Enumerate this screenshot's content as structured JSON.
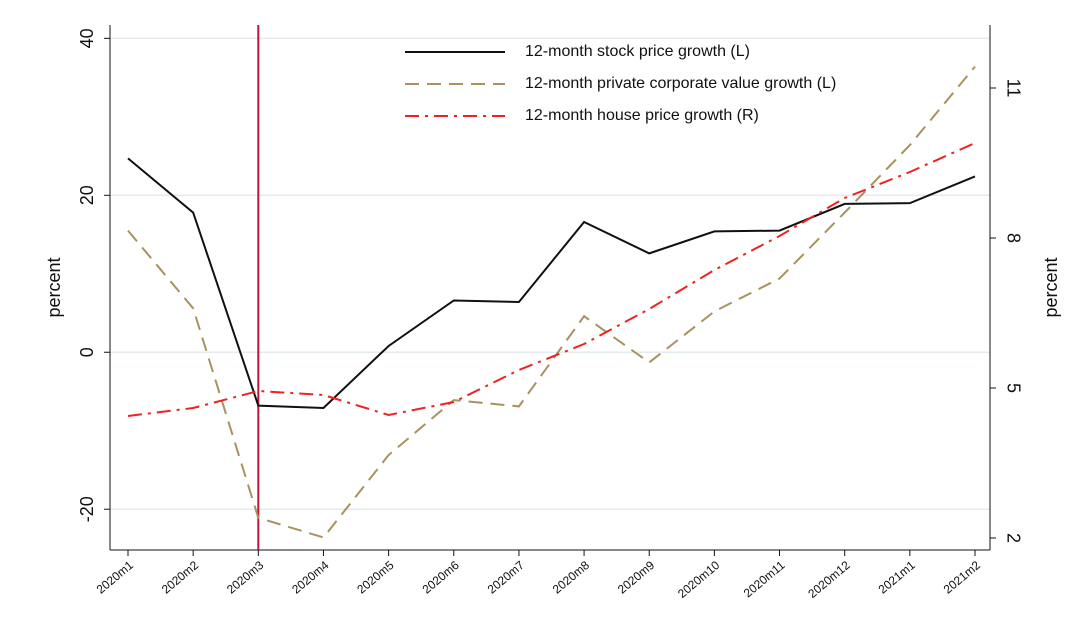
{
  "chart_data": {
    "type": "line",
    "categories": [
      "2020m1",
      "2020m2",
      "2020m3",
      "2020m4",
      "2020m5",
      "2020m6",
      "2020m7",
      "2020m8",
      "2020m9",
      "2020m10",
      "2020m11",
      "2020m12",
      "2021m1",
      "2021m2"
    ],
    "series": [
      {
        "name": "12-month stock price growth (L)",
        "color": "#111111",
        "dash": "solid",
        "axis": "y",
        "values": [
          24.7,
          17.8,
          -6.8,
          -7.1,
          0.8,
          6.6,
          6.4,
          16.6,
          12.6,
          15.4,
          15.5,
          18.9,
          19.0,
          22.4
        ]
      },
      {
        "name": "12-month private corporate value growth (L)",
        "color": "#a8925e",
        "dash": "dashed",
        "axis": "y",
        "values": [
          15.5,
          5.6,
          -21.1,
          -23.6,
          -13.1,
          -6.1,
          -6.9,
          4.6,
          -1.3,
          5.2,
          9.4,
          17.8,
          26.4,
          36.4
        ]
      },
      {
        "name": "12-month house price growth (R)",
        "color": "#ee2222",
        "dash": "dashdot",
        "axis": "y2",
        "values": [
          4.44,
          4.6,
          4.94,
          4.86,
          4.46,
          4.72,
          5.36,
          5.88,
          6.58,
          7.36,
          8.04,
          8.8,
          9.32,
          9.9
        ]
      }
    ],
    "y_label": "percent",
    "y2_label": "percent",
    "ylim": [
      -25.2,
      41.7
    ],
    "yticks": [
      -20,
      0,
      20,
      40
    ],
    "y2lim": [
      1.76,
      12.26
    ],
    "y2ticks": [
      2,
      5,
      8,
      11
    ],
    "grid": true,
    "vline": "2020m3",
    "vline_color": "#c0143c"
  }
}
